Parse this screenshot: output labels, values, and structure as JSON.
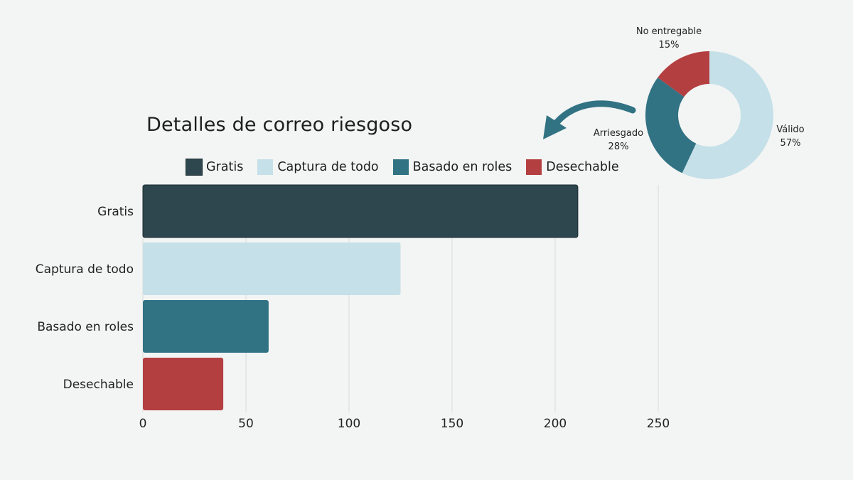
{
  "chart_data": [
    {
      "type": "bar",
      "orientation": "horizontal",
      "title": "Detalles de correo riesgoso",
      "categories": [
        "Gratis",
        "Captura de todo",
        "Basado en roles",
        "Desechable"
      ],
      "values": [
        211,
        125,
        61,
        39
      ],
      "colors": [
        "#2e474f",
        "#c5e0e8",
        "#317283",
        "#b43f41"
      ],
      "legend": [
        "Gratis",
        "Captura de todo",
        "Basado en roles",
        "Desechable"
      ],
      "legend_position": "top",
      "xlim": [
        0,
        300
      ],
      "xticks": [
        0,
        50,
        100,
        150,
        200,
        250
      ],
      "grid": true
    },
    {
      "type": "pie",
      "variant": "donut",
      "slices": [
        {
          "label": "Válido",
          "value": 57,
          "display": "57%",
          "color": "#c5e0e8"
        },
        {
          "label": "Arriesgado",
          "value": 28,
          "display": "28%",
          "color": "#317283"
        },
        {
          "label": "No entregable",
          "value": 15,
          "display": "15%",
          "color": "#b43f41"
        }
      ]
    }
  ],
  "arrow_color": "#317283"
}
